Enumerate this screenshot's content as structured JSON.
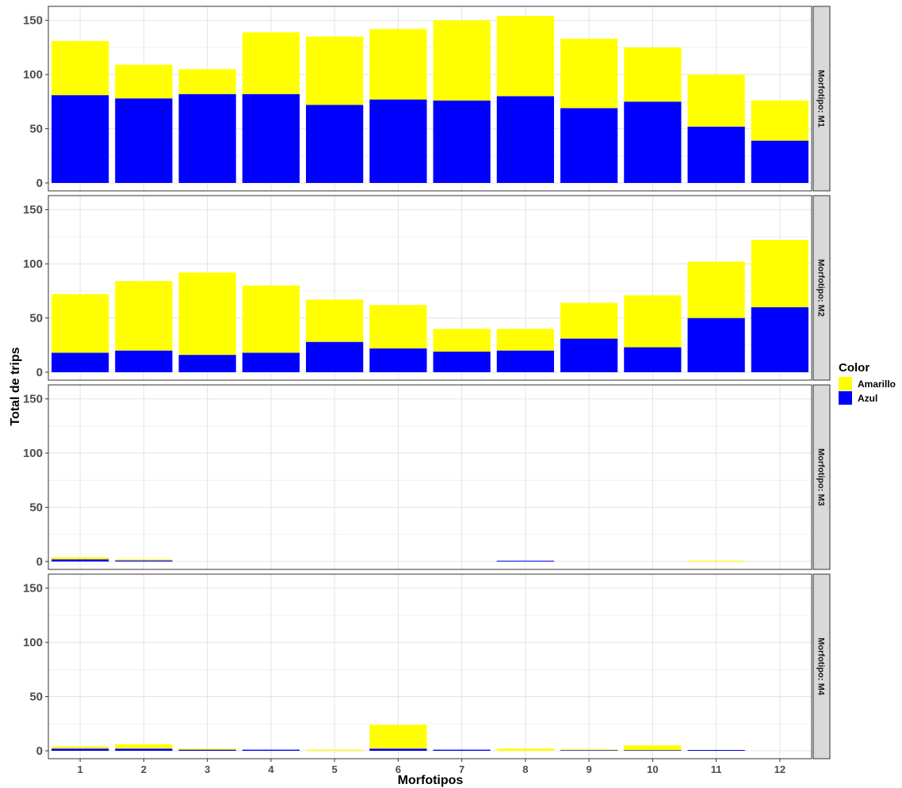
{
  "chart_data": {
    "type": "bar",
    "stacked": true,
    "xlabel": "Morfotipos",
    "ylabel": "Total de trips",
    "categories": [
      "1",
      "2",
      "3",
      "4",
      "5",
      "6",
      "7",
      "8",
      "9",
      "10",
      "11",
      "12"
    ],
    "ylim": [
      0,
      160
    ],
    "yticks": [
      0,
      50,
      100,
      150
    ],
    "grid": true,
    "legend": {
      "title": "Color",
      "position": "right",
      "entries": [
        {
          "name": "Amarillo",
          "color": "#ffff00"
        },
        {
          "name": "Azul",
          "color": "#0000ff"
        }
      ]
    },
    "facets": [
      {
        "label": "Morfotipo: M1",
        "series": [
          {
            "name": "Azul",
            "color": "#0000ff",
            "values": [
              81,
              78,
              82,
              82,
              72,
              77,
              76,
              80,
              69,
              75,
              52,
              39
            ]
          },
          {
            "name": "Amarillo",
            "color": "#ffff00",
            "values": [
              50,
              31,
              23,
              57,
              63,
              65,
              74,
              74,
              64,
              50,
              48,
              37
            ]
          }
        ]
      },
      {
        "label": "Morfotipo: M2",
        "series": [
          {
            "name": "Azul",
            "color": "#0000ff",
            "values": [
              18,
              20,
              16,
              18,
              28,
              22,
              19,
              20,
              31,
              23,
              50,
              60
            ]
          },
          {
            "name": "Amarillo",
            "color": "#ffff00",
            "values": [
              54,
              64,
              76,
              62,
              39,
              40,
              21,
              20,
              33,
              48,
              52,
              62
            ]
          }
        ]
      },
      {
        "label": "Morfotipo: M3",
        "series": [
          {
            "name": "Azul",
            "color": "#0000ff",
            "values": [
              2,
              1,
              0,
              0,
              0,
              0,
              0,
              0.5,
              0,
              0,
              0,
              0
            ]
          },
          {
            "name": "Amarillo",
            "color": "#ffff00",
            "values": [
              2,
              1,
              0,
              0,
              0,
              0,
              0,
              0,
              0,
              0,
              0.5,
              0
            ]
          }
        ]
      },
      {
        "label": "Morfotipo: M4",
        "series": [
          {
            "name": "Azul",
            "color": "#0000ff",
            "values": [
              2,
              2,
              1,
              1,
              0,
              2,
              1,
              0,
              0.5,
              0.5,
              0.5,
              0
            ]
          },
          {
            "name": "Amarillo",
            "color": "#ffff00",
            "values": [
              2,
              4,
              1,
              0,
              1,
              22,
              0,
              2,
              0.5,
              4.5,
              0,
              0
            ]
          }
        ]
      }
    ]
  }
}
